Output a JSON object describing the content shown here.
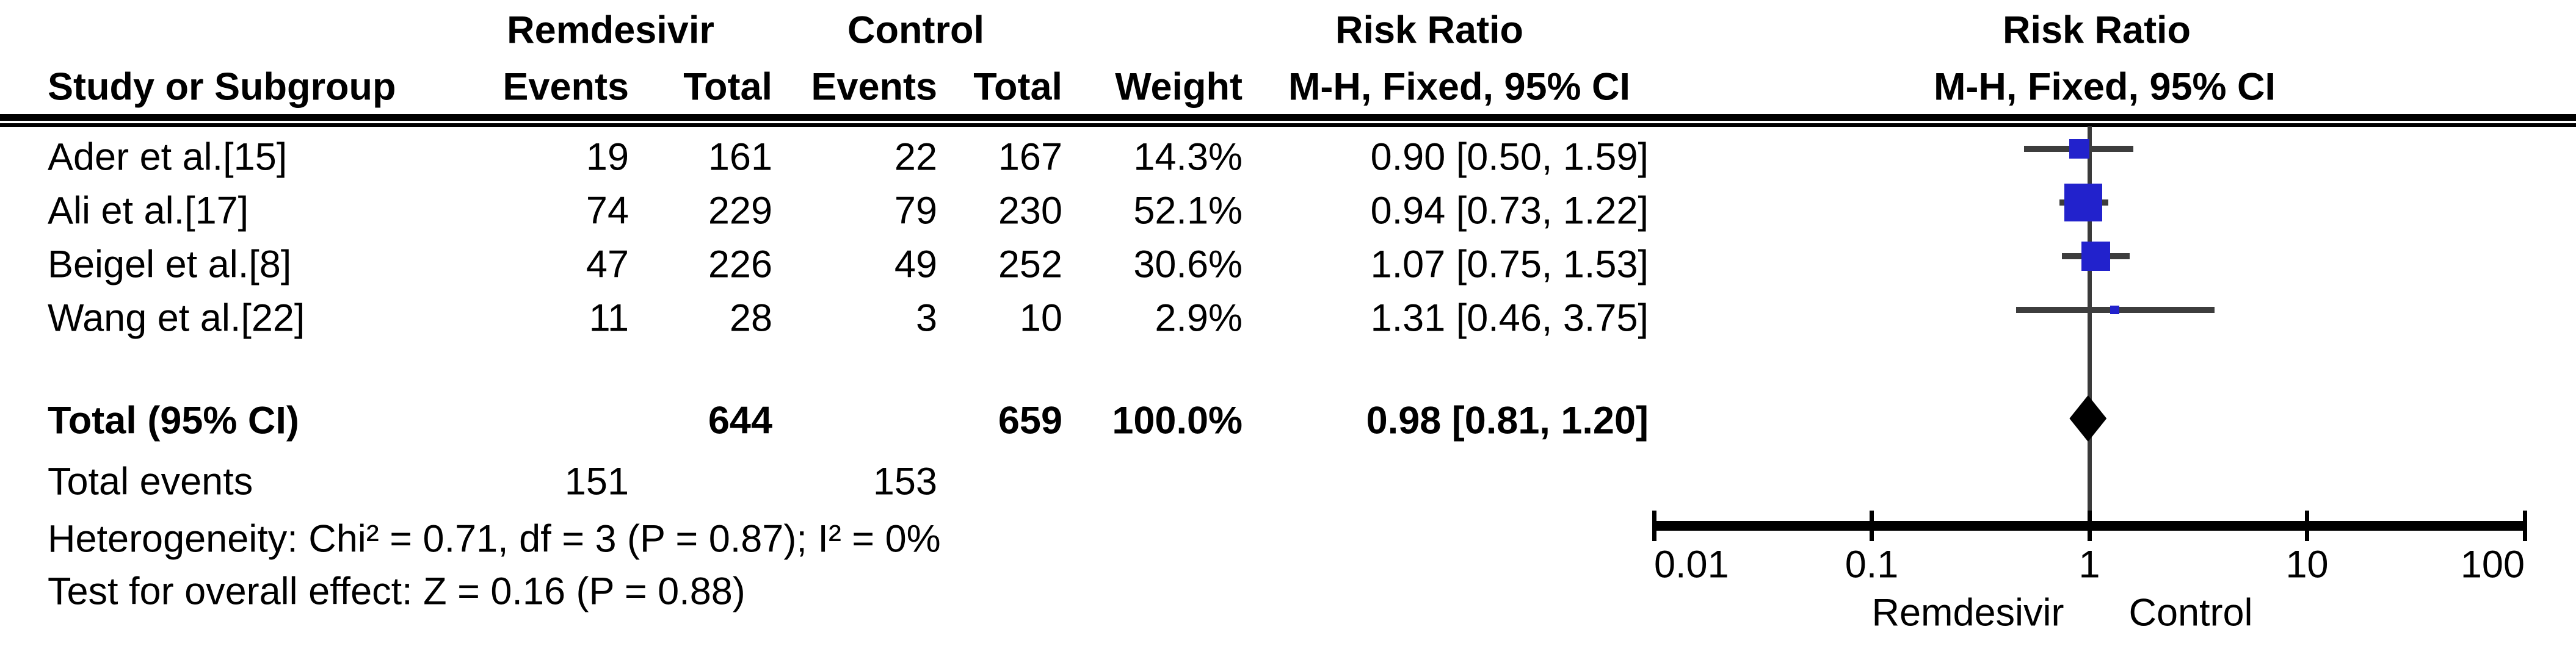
{
  "header": {
    "col_study": "Study or Subgroup",
    "group1": "Remdesivir",
    "group2": "Control",
    "col_events": "Events",
    "col_total": "Total",
    "col_weight": "Weight",
    "risk_ratio_title": "Risk Ratio",
    "risk_ratio_subtitle": "M-H, Fixed, 95% CI"
  },
  "chart_data": {
    "type": "forest",
    "scale": "log10",
    "title": "Risk Ratio",
    "method": "M-H, Fixed, 95% CI",
    "axis": {
      "min": 0.01,
      "max": 100,
      "ticks": [
        0.01,
        0.1,
        1,
        10,
        100
      ],
      "tick_labels": [
        "0.01",
        "0.1",
        "1",
        "10",
        "100"
      ],
      "left_label": "Remdesivir",
      "right_label": "Control"
    },
    "studies": [
      {
        "label": "Ader et al.[15]",
        "events1": 19,
        "total1": 161,
        "events2": 22,
        "total2": 167,
        "weight": "14.3%",
        "weight_value": 14.3,
        "rr": 0.9,
        "ci_low": 0.5,
        "ci_high": 1.59,
        "rr_text": "0.90 [0.50, 1.59]"
      },
      {
        "label": "Ali et al.[17]",
        "events1": 74,
        "total1": 229,
        "events2": 79,
        "total2": 230,
        "weight": "52.1%",
        "weight_value": 52.1,
        "rr": 0.94,
        "ci_low": 0.73,
        "ci_high": 1.22,
        "rr_text": "0.94 [0.73, 1.22]"
      },
      {
        "label": "Beigel et al.[8]",
        "events1": 47,
        "total1": 226,
        "events2": 49,
        "total2": 252,
        "weight": "30.6%",
        "weight_value": 30.6,
        "rr": 1.07,
        "ci_low": 0.75,
        "ci_high": 1.53,
        "rr_text": "1.07 [0.75, 1.53]"
      },
      {
        "label": "Wang et al.[22]",
        "events1": 11,
        "total1": 28,
        "events2": 3,
        "total2": 10,
        "weight": "2.9%",
        "weight_value": 2.9,
        "rr": 1.31,
        "ci_low": 0.46,
        "ci_high": 3.75,
        "rr_text": "1.31 [0.46, 3.75]"
      }
    ],
    "total": {
      "label": "Total (95% CI)",
      "total1": 644,
      "total2": 659,
      "weight": "100.0%",
      "weight_value": 100.0,
      "rr": 0.98,
      "ci_low": 0.81,
      "ci_high": 1.2,
      "rr_text": "0.98 [0.81, 1.20]"
    },
    "total_events": {
      "label": "Total events",
      "events1": 151,
      "events2": 153
    },
    "heterogeneity": "Heterogeneity: Chi² = 0.71, df = 3 (P = 0.87); I² = 0%",
    "overall_effect": "Test for overall effect: Z = 0.16 (P = 0.88)",
    "colors": {
      "marker": "#2222CC",
      "ci_line": "#3d3d3d",
      "diamond": "#000000",
      "axis": "#000000",
      "reference_line": "#3a3a3a"
    }
  }
}
